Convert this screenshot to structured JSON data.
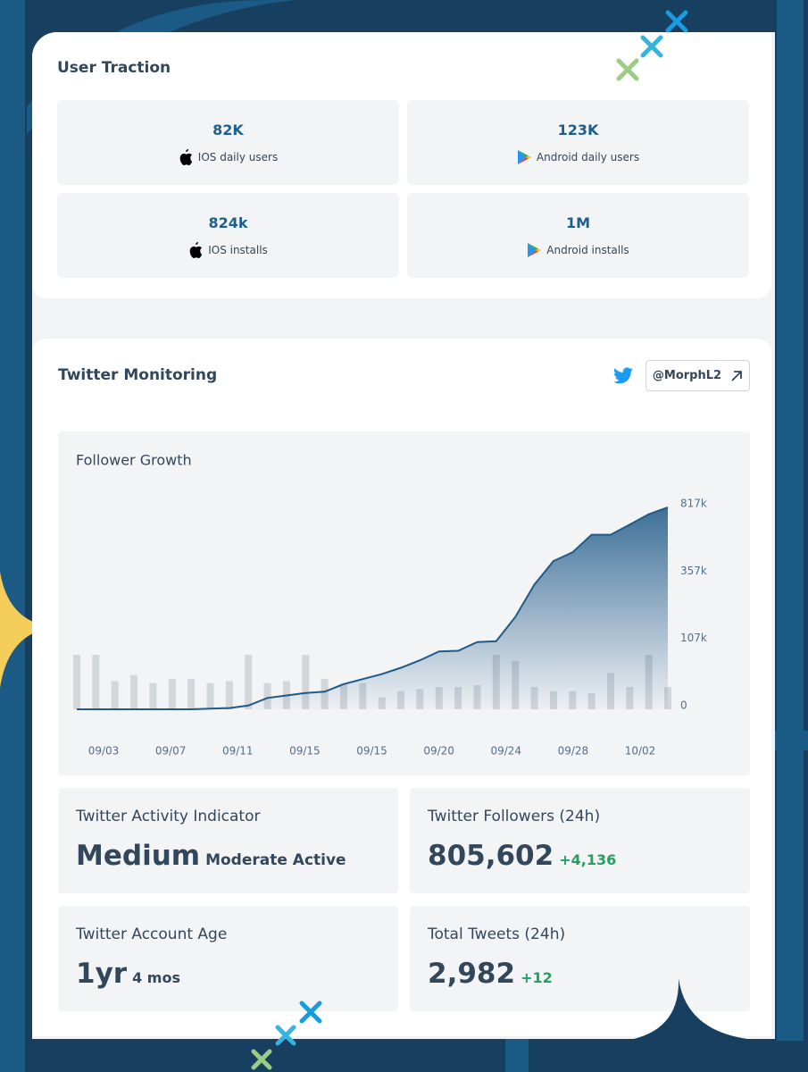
{
  "user_traction": {
    "title": "User Traction",
    "tiles": [
      {
        "value": "82K",
        "label": "IOS daily users"
      },
      {
        "value": "123K",
        "label": "Android daily users"
      },
      {
        "value": "824k",
        "label": "IOS installs"
      },
      {
        "value": "1M",
        "label": "Android installs"
      }
    ]
  },
  "twitter": {
    "title": "Twitter Monitoring",
    "handle": "@MorphL2"
  },
  "chart_data": {
    "type": "area",
    "title": "Follower Growth",
    "x_labels": [
      "09/03",
      "09/07",
      "09/11",
      "09/15",
      "09/15",
      "09/20",
      "09/24",
      "09/28",
      "10/02"
    ],
    "values": [
      0,
      0,
      0,
      0,
      0,
      0,
      0,
      1000,
      2000,
      6000,
      18000,
      22000,
      26000,
      28000,
      40000,
      48000,
      56000,
      66000,
      78000,
      92000,
      93000,
      107000,
      110000,
      200000,
      320000,
      450000,
      510000,
      630000,
      630000,
      700000,
      770000,
      817000
    ],
    "color": "#1f5a88",
    "bar_values": [
      27,
      27,
      14,
      17,
      13,
      15,
      15,
      13,
      14,
      27,
      13,
      14,
      27,
      15,
      13,
      13,
      6,
      9,
      10,
      11,
      11,
      12,
      27,
      24,
      11,
      9,
      9,
      8,
      18,
      11,
      27,
      11
    ],
    "bar_color": "#d3d6db",
    "bar_ylim": [
      0,
      100
    ],
    "ylim": [
      0,
      817000
    ],
    "yticks": [
      0,
      {
        "value": 107000,
        "label": "107k"
      },
      {
        "value": 357000,
        "label": "357k"
      },
      {
        "value": 817000,
        "label": "817k"
      }
    ]
  },
  "stats": [
    {
      "label": "Twitter Activity Indicator",
      "value": "Medium",
      "sub": "Moderate Active"
    },
    {
      "label": "Twitter Followers (24h)",
      "value": "805,602",
      "sub": "+4,136"
    },
    {
      "label": "Twitter Account Age",
      "value": "1yr",
      "sub": "4 mos"
    },
    {
      "label": "Total Tweets (24h)",
      "value": "2,982",
      "sub": "+12"
    }
  ]
}
